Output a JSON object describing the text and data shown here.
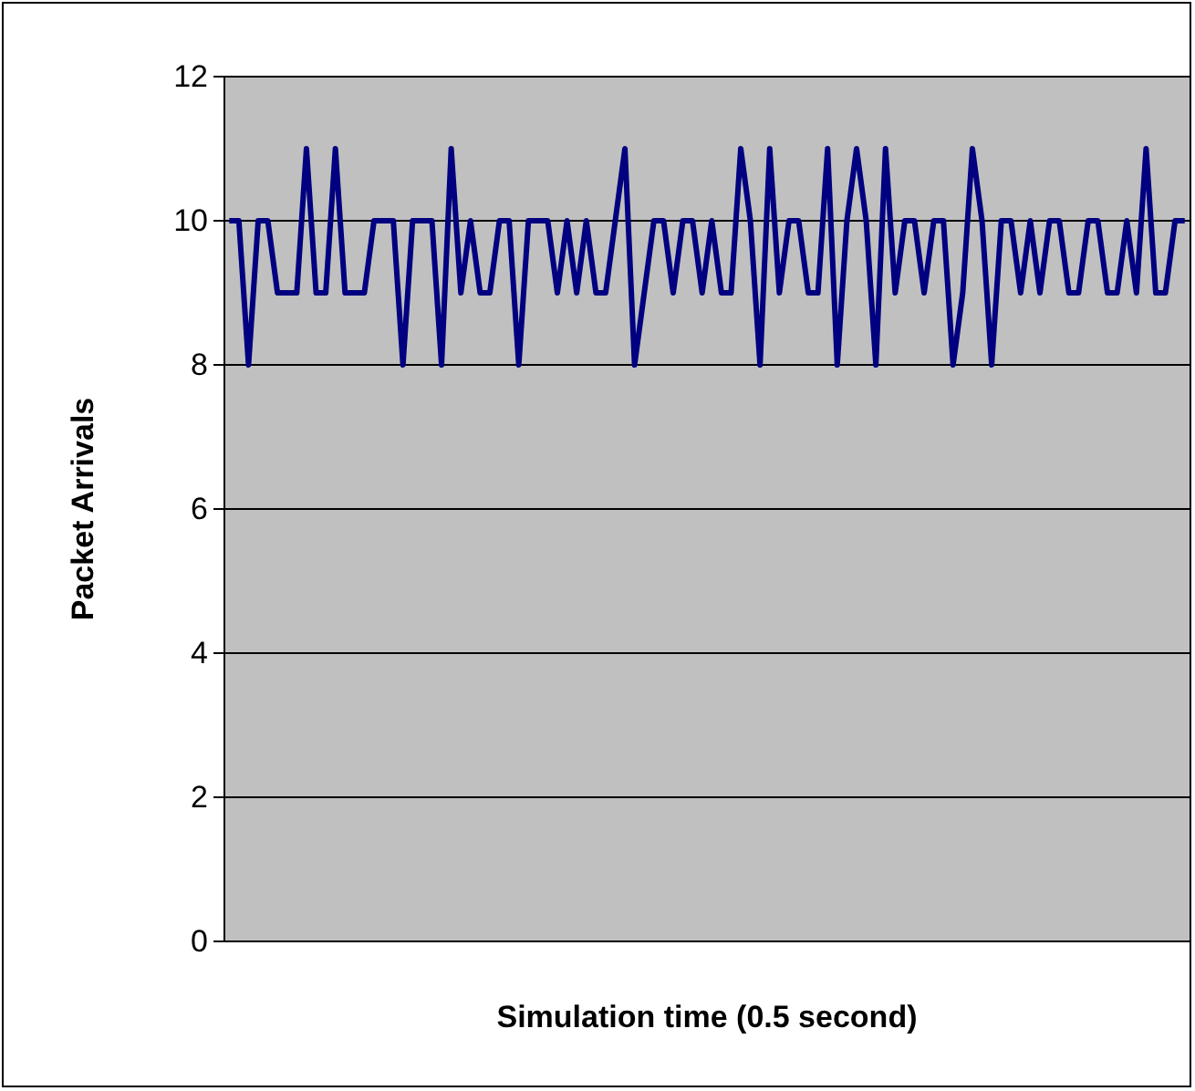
{
  "chart_data": {
    "type": "line",
    "xlabel": "Simulation time (0.5 second)",
    "ylabel": "Packet Arrivals",
    "categories": [
      null,
      null,
      null,
      null,
      null,
      null,
      null,
      null,
      null,
      null,
      null,
      null,
      null,
      null,
      null,
      null,
      null,
      null,
      null,
      null,
      null,
      null,
      null,
      null,
      null,
      null,
      null,
      null,
      null,
      null,
      null,
      null,
      null,
      null,
      null,
      null,
      null,
      null,
      null,
      null,
      null,
      null,
      null,
      null,
      null,
      null,
      null,
      null,
      null,
      null,
      null,
      null,
      null,
      null,
      null,
      null,
      null,
      null,
      null,
      null,
      null,
      null,
      null,
      null,
      null,
      null,
      null,
      null,
      null,
      null,
      null,
      null,
      null,
      null,
      null,
      null,
      null,
      null,
      null,
      null,
      null,
      null,
      null,
      null,
      null,
      null,
      null,
      null,
      null,
      null,
      null,
      null,
      null,
      null,
      null,
      null,
      null,
      null,
      null,
      null
    ],
    "series": [
      {
        "color": "#000080",
        "values": [
          10,
          10,
          8,
          10,
          10,
          9,
          9,
          9,
          11,
          9,
          9,
          11,
          9,
          9,
          9,
          10,
          10,
          10,
          8,
          10,
          10,
          10,
          8,
          11,
          9,
          10,
          9,
          9,
          10,
          10,
          8,
          10,
          10,
          10,
          9,
          10,
          9,
          10,
          9,
          9,
          10,
          11,
          8,
          9,
          10,
          10,
          9,
          10,
          10,
          9,
          10,
          9,
          9,
          11,
          10,
          8,
          11,
          9,
          10,
          10,
          9,
          9,
          11,
          8,
          10,
          11,
          10,
          8,
          11,
          9,
          10,
          10,
          9,
          10,
          10,
          8,
          9,
          11,
          10,
          8,
          10,
          10,
          9,
          10,
          9,
          10,
          10,
          9,
          9,
          10,
          10,
          9,
          9,
          10,
          9,
          11,
          9,
          9,
          10,
          10
        ]
      }
    ],
    "ylim": [
      0,
      12
    ],
    "yticks": [
      0,
      2,
      4,
      6,
      8,
      10,
      12
    ],
    "grid": "y"
  }
}
